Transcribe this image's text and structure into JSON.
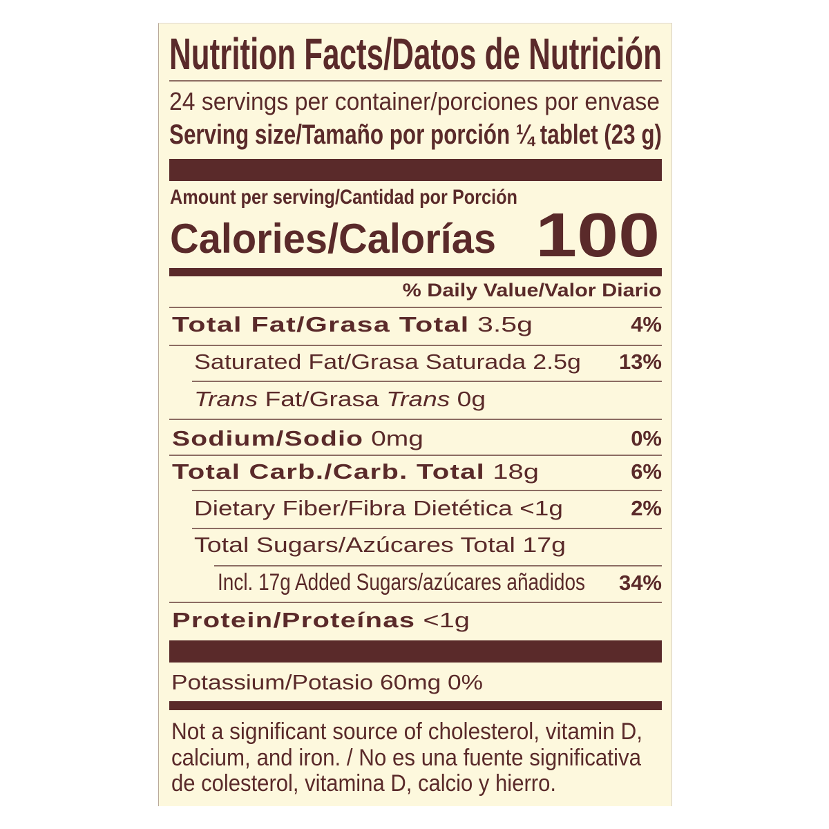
{
  "label": {
    "title": "Nutrition Facts/Datos de Nutrición",
    "servings": "24 servings per container/porciones por envase",
    "serving_size": "Serving size/Tamaño por porción ¼ tablet (23 g)",
    "amount_per_serving": "Amount per serving/Cantidad por Porción",
    "calories_label": "Calories/Calorías",
    "calories_value": "100",
    "daily_value_header": "% Daily Value/Valor Diario",
    "rows": [
      {
        "label": "Total Fat/Grasa Total",
        "amount": "3.5g",
        "dv": "4%"
      },
      {
        "label": "Saturated Fat/Grasa Saturada",
        "amount": "2.5g",
        "dv": "13%"
      },
      {
        "label_italic": "Trans",
        "label_mid": " Fat/Grasa ",
        "label_italic2": "Trans",
        "amount": "0g"
      },
      {
        "label": "Sodium/Sodio",
        "amount": "0mg",
        "dv": "0%"
      },
      {
        "label": "Total Carb./Carb. Total",
        "amount": "18g",
        "dv": "6%"
      },
      {
        "label": "Dietary Fiber/Fibra Dietética",
        "amount": "<1g",
        "dv": "2%"
      },
      {
        "label": "Total Sugars/Azúcares Total",
        "amount": "17g"
      },
      {
        "label": "Incl. 17g Added Sugars/azúcares añadidos",
        "dv": "34%"
      },
      {
        "label": "Protein/Proteínas",
        "amount": "<1g"
      }
    ],
    "potassium": "Potassium/Potasio 60mg 0%",
    "footnote": [
      "Not a significant source of cholesterol, vitamin D,",
      "calcium, and iron. / No es una fuente significativa",
      "de colesterol, vitamina D, calcio y hierro."
    ]
  },
  "colors": {
    "text": "#5a2a2a",
    "background": "#fdf8dd"
  }
}
